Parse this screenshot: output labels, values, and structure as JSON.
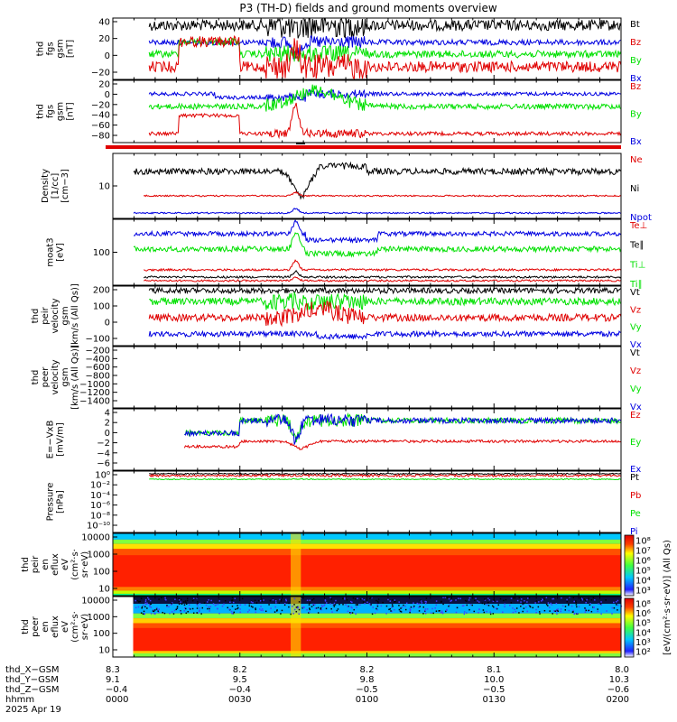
{
  "title": "P3 (TH-D) fields and ground moments overview",
  "colors": {
    "black": "#000000",
    "red": "#e00000",
    "green": "#00e000",
    "blue": "#0000e0"
  },
  "panels": [
    {
      "ylabel": [
        "thd",
        "fgs",
        "gsm",
        "[nT]"
      ],
      "ticks": [
        "40",
        "20",
        "0",
        "−20"
      ],
      "legend": [
        {
          "text": "Bt",
          "color": "black"
        },
        {
          "text": "Bz",
          "color": "red"
        },
        {
          "text": "By",
          "color": "green"
        },
        {
          "text": "Bx",
          "color": "blue"
        }
      ]
    },
    {
      "ylabel": [
        "thd",
        "fgs",
        "gsm",
        "[nT]"
      ],
      "ticks": [
        "20",
        "0",
        "−20",
        "−40",
        "−60",
        "−80"
      ],
      "legend": [
        {
          "text": "Bz",
          "color": "red"
        },
        {
          "text": "By",
          "color": "green"
        },
        {
          "text": "Bx",
          "color": "blue"
        }
      ]
    },
    {
      "ylabel": [
        "Density",
        "[1/cc]",
        "[cm−3]"
      ],
      "ticks": [
        "10"
      ],
      "legend": [
        {
          "text": "Ne",
          "color": "red"
        },
        {
          "text": "Ni",
          "color": "black"
        },
        {
          "text": "Npot",
          "color": "blue"
        }
      ]
    },
    {
      "ylabel": [
        "moat3",
        "[eV]"
      ],
      "ticks": [
        "100"
      ],
      "legend": [
        {
          "text": "Te⊥",
          "color": "red"
        },
        {
          "text": "Te∥",
          "color": "black"
        },
        {
          "text": "Ti⊥",
          "color": "green"
        },
        {
          "text": "Ti∥",
          "color": "green"
        }
      ]
    },
    {
      "ylabel": [
        "thd",
        "peir",
        "velocity",
        "gsm",
        "[km/s (All Qs)]"
      ],
      "ticks": [
        "200",
        "100",
        "0",
        "−100"
      ],
      "legend": [
        {
          "text": "Vt",
          "color": "black"
        },
        {
          "text": "Vz",
          "color": "red"
        },
        {
          "text": "Vy",
          "color": "green"
        },
        {
          "text": "Vx",
          "color": "blue"
        }
      ]
    },
    {
      "ylabel": [
        "thd",
        "peer",
        "velocity",
        "gsm",
        "[km/s (All Qs)]"
      ],
      "ticks": [
        "−200",
        "−400",
        "−600",
        "−800",
        "−1000",
        "−1200",
        "−1400"
      ],
      "legend": [
        {
          "text": "Vt",
          "color": "black"
        },
        {
          "text": "Vz",
          "color": "red"
        },
        {
          "text": "Vy",
          "color": "green"
        },
        {
          "text": "Vx",
          "color": "blue"
        }
      ]
    },
    {
      "ylabel": [
        "E=−VxB",
        "[mV/m]"
      ],
      "ticks": [
        "4",
        "2",
        "0",
        "−2",
        "−4",
        "−6"
      ],
      "legend": [
        {
          "text": "Ez",
          "color": "red"
        },
        {
          "text": "Ey",
          "color": "green"
        },
        {
          "text": "Ex",
          "color": "blue"
        }
      ]
    },
    {
      "ylabel": [
        "Pressure",
        "[nPa]"
      ],
      "ticks": [
        "10⁰",
        "10⁻²",
        "10⁻⁴",
        "10⁻⁶",
        "10⁻⁸",
        "10⁻¹⁰"
      ],
      "legend": [
        {
          "text": "Pt",
          "color": "black"
        },
        {
          "text": "Pb",
          "color": "red"
        },
        {
          "text": "Pe",
          "color": "green"
        },
        {
          "text": "Pi",
          "color": "blue"
        }
      ]
    },
    {
      "ylabel": [
        "thd",
        "peir",
        "en",
        "eflux",
        "eV",
        "(cm²·s·",
        "sr·eV)"
      ],
      "ticks": [
        "10000",
        "1000",
        "100",
        "10"
      ]
    },
    {
      "ylabel": [
        "thd",
        "peer",
        "en",
        "eflux",
        "eV",
        "(cm²·s·",
        "sr·eV)"
      ],
      "ticks": [
        "10000",
        "1000",
        "100",
        "10"
      ]
    }
  ],
  "colorbar": {
    "label": "[eV/(cm²·s·sr·eV)] (All Qs)",
    "ticks1": [
      "10⁸",
      "10⁷",
      "10⁶",
      "10⁵",
      "10⁴",
      "10³"
    ],
    "ticks2": [
      "10⁸",
      "10⁶",
      "10⁵",
      "10⁴",
      "10³",
      "10²"
    ]
  },
  "footer": {
    "rows": [
      {
        "label": "thd_X−GSM",
        "values": [
          "8.3",
          "8.2",
          "8.2",
          "8.1",
          "8.0"
        ]
      },
      {
        "label": "thd_Y−GSM",
        "values": [
          "9.1",
          "9.5",
          "9.8",
          "10.0",
          "10.3"
        ]
      },
      {
        "label": "thd_Z−GSM",
        "values": [
          "−0.4",
          "−0.4",
          "−0.5",
          "−0.5",
          "−0.6"
        ]
      },
      {
        "label": "hhmm",
        "values": [
          "0000",
          "0030",
          "0100",
          "0130",
          "0200"
        ]
      }
    ],
    "date": "2025 Apr 19"
  },
  "chart_data": {
    "type": "line",
    "title": "P3 (TH-D) fields and ground moments overview",
    "x_ticks": [
      "0000",
      "0030",
      "0100",
      "0130",
      "0200"
    ],
    "x_range": [
      "0000",
      "0200"
    ],
    "panels": [
      {
        "series": [
          "Bt",
          "Bz",
          "By",
          "Bx"
        ],
        "ylim": [
          -35,
          42
        ],
        "approx": {
          "Bt": 28,
          "Bz": -22,
          "By": -5,
          "Bx": 5
        }
      },
      {
        "series": [
          "Bz",
          "By",
          "Bx"
        ],
        "ylim": [
          -92,
          25
        ],
        "approx": {
          "Bz": -68,
          "By": -10,
          "Bx": 2
        }
      },
      {
        "series": [
          "Ne",
          "Ni",
          "Npot"
        ],
        "scale": "log",
        "approx": {
          "Ni": 30,
          "Ne": 8,
          "Npot": 4
        }
      },
      {
        "series": [
          "Te⊥",
          "Te∥",
          "Ti⊥",
          "Ti∥"
        ],
        "scale": "log",
        "approx": {
          "Ti⊥": 2500,
          "Ti∥": 1000,
          "Te⊥": 40,
          "Te∥": 25
        }
      },
      {
        "series": [
          "Vt",
          "Vz",
          "Vy",
          "Vx"
        ],
        "ylim": [
          -120,
          210
        ],
        "approx": {
          "Vt": 130,
          "Vz": -10,
          "Vy": 80,
          "Vx": -90
        }
      },
      {
        "series": [
          "Vt",
          "Vz",
          "Vy",
          "Vx"
        ],
        "ylim": [
          -1500,
          0
        ],
        "note_empty": true
      },
      {
        "series": [
          "Ez",
          "Ey",
          "Ex"
        ],
        "ylim": [
          -7,
          5
        ],
        "approx": {
          "Ey": 3,
          "Ez": 0,
          "Ex": 3
        }
      },
      {
        "series": [
          "Pt",
          "Pb",
          "Pe",
          "Pi"
        ],
        "scale": "log",
        "ylim": [
          "1e-10",
          "1e1"
        ]
      },
      {
        "type": "heatmap",
        "ylabel": "en eflux",
        "y_ticks": [
          10,
          100,
          1000,
          10000
        ],
        "scale": "log"
      },
      {
        "type": "heatmap",
        "ylabel": "en eflux",
        "y_ticks": [
          10,
          100,
          1000,
          10000
        ],
        "scale": "log"
      }
    ]
  }
}
